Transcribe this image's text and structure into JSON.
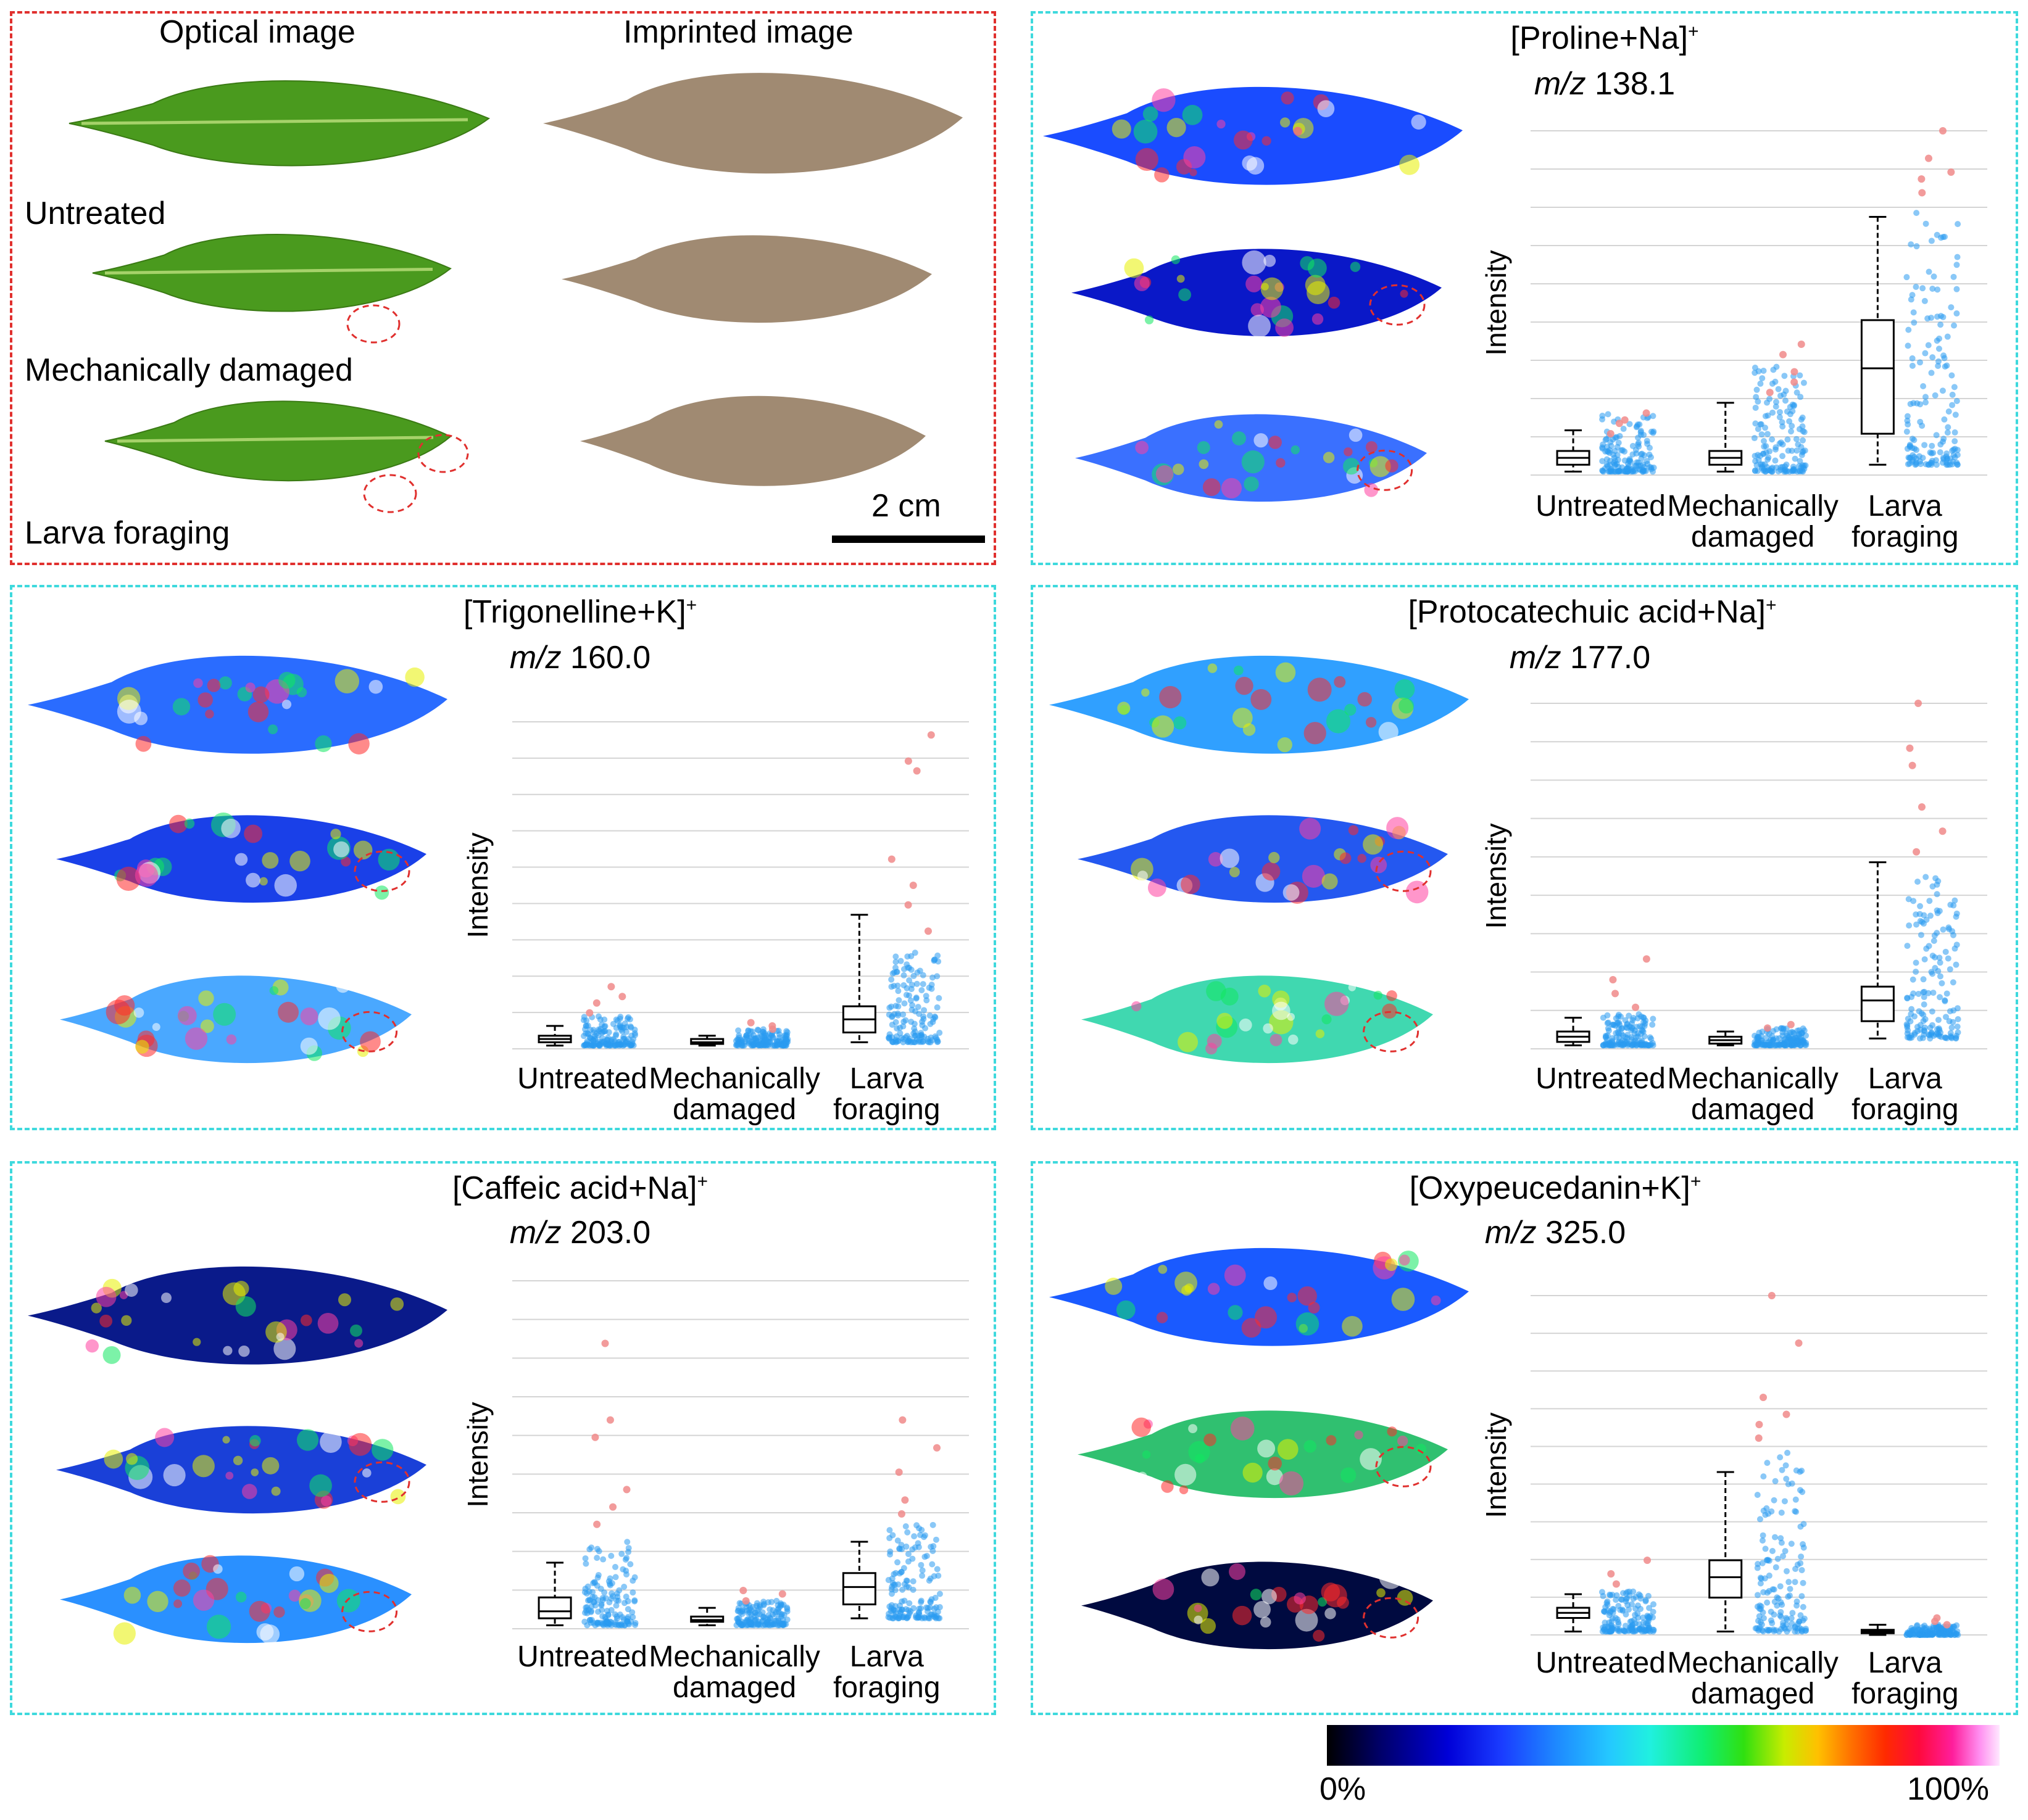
{
  "figure": {
    "optical_label": "Optical image",
    "imprinted_label": "Imprinted image",
    "row_labels": [
      "Untreated",
      "Mechanically damaged",
      "Larva foraging"
    ],
    "scale_bar": "2 cm",
    "y_axis_label": "Intensity",
    "colorbar": {
      "min_label": "0%",
      "max_label": "100%"
    }
  },
  "colors": {
    "red_outline": "#e0302e",
    "cyan_outline": "#3ed9dd",
    "points_main": "#2a9af0",
    "points_outlier": "#f08a8a",
    "leaf_green": "#4a9a1e",
    "imprint_brown": "#a08a72"
  },
  "chart_data": [
    {
      "type": "box",
      "title": "[Proline+Na]",
      "title_sup": "+",
      "mz_prefix": "m/z",
      "mz_value": "138.1",
      "ylabel": "Intensity",
      "ylim": [
        0,
        100
      ],
      "categories": [
        [
          "Untreated"
        ],
        [
          "Mechanically",
          "damaged"
        ],
        [
          "Larva",
          "foraging"
        ]
      ],
      "boxes": [
        {
          "min": 1,
          "q1": 3,
          "median": 5,
          "q3": 7,
          "max": 13,
          "scatter_top": 18,
          "outliers": [
            12,
            15,
            16,
            18
          ]
        },
        {
          "min": 1,
          "q1": 3,
          "median": 5,
          "q3": 7,
          "max": 21,
          "scatter_top": 32,
          "outliers": [
            24,
            27,
            30,
            35,
            38
          ]
        },
        {
          "min": 3,
          "q1": 12,
          "median": 31,
          "q3": 45,
          "max": 75,
          "scatter_top": 80,
          "outliers": [
            82,
            86,
            88,
            92,
            100
          ]
        }
      ]
    },
    {
      "type": "box",
      "title": "[Trigonelline+K]",
      "title_sup": "+",
      "mz_prefix": "m/z",
      "mz_value": "160.0",
      "ylabel": "Intensity",
      "ylim": [
        0,
        100
      ],
      "categories": [
        [
          "Untreated"
        ],
        [
          "Mechanically",
          "damaged"
        ],
        [
          "Larva",
          "foraging"
        ]
      ],
      "boxes": [
        {
          "min": 1,
          "q1": 2,
          "median": 3,
          "q3": 4,
          "max": 7,
          "scatter_top": 10,
          "outliers": [
            11,
            14,
            16,
            19
          ]
        },
        {
          "min": 1,
          "q1": 1.5,
          "median": 2,
          "q3": 3,
          "max": 4,
          "scatter_top": 6,
          "outliers": [
            6,
            7,
            8
          ]
        },
        {
          "min": 2,
          "q1": 5,
          "median": 9,
          "q3": 13,
          "max": 41,
          "scatter_top": 30,
          "outliers": [
            36,
            44,
            50,
            58,
            85,
            88,
            96
          ]
        }
      ]
    },
    {
      "type": "box",
      "title": "[Protocatechuic acid+Na]",
      "title_sup": "+",
      "mz_prefix": "m/z",
      "mz_value": "177.0",
      "ylabel": "Intensity",
      "ylim": [
        0,
        100
      ],
      "categories": [
        [
          "Untreated"
        ],
        [
          "Mechanically",
          "damaged"
        ],
        [
          "Larva",
          "foraging"
        ]
      ],
      "boxes": [
        {
          "min": 1,
          "q1": 2,
          "median": 3.5,
          "q3": 5,
          "max": 9,
          "scatter_top": 10,
          "outliers": [
            12,
            16,
            20,
            26
          ]
        },
        {
          "min": 1,
          "q1": 1.5,
          "median": 2.5,
          "q3": 3.5,
          "max": 5,
          "scatter_top": 6,
          "outliers": [
            6,
            7
          ]
        },
        {
          "min": 3,
          "q1": 8,
          "median": 14,
          "q3": 18,
          "max": 54,
          "scatter_top": 50,
          "outliers": [
            57,
            63,
            70,
            82,
            87,
            100
          ]
        }
      ]
    },
    {
      "type": "box",
      "title": "[Caffeic acid+Na]",
      "title_sup": "+",
      "mz_prefix": "m/z",
      "mz_value": "203.0",
      "ylabel": "Intensity",
      "ylim": [
        0,
        100
      ],
      "categories": [
        [
          "Untreated"
        ],
        [
          "Mechanically",
          "damaged"
        ],
        [
          "Larva",
          "foraging"
        ]
      ],
      "boxes": [
        {
          "min": 1,
          "q1": 3,
          "median": 5,
          "q3": 9,
          "max": 19,
          "scatter_top": 25,
          "outliers": [
            30,
            35,
            40,
            55,
            60,
            82
          ]
        },
        {
          "min": 1,
          "q1": 2,
          "median": 2.5,
          "q3": 3.5,
          "max": 6,
          "scatter_top": 8,
          "outliers": [
            8,
            10,
            11
          ]
        },
        {
          "min": 3,
          "q1": 7,
          "median": 12,
          "q3": 16,
          "max": 25,
          "scatter_top": 30,
          "outliers": [
            33,
            37,
            45,
            52,
            60
          ]
        }
      ]
    },
    {
      "type": "box",
      "title": "[Oxypeucedanin+K]",
      "title_sup": "+",
      "mz_prefix": "m/z",
      "mz_value": "325.0",
      "ylabel": "Intensity",
      "ylim": [
        0,
        100
      ],
      "categories": [
        [
          "Untreated"
        ],
        [
          "Mechanically",
          "damaged"
        ],
        [
          "Larva",
          "foraging"
        ]
      ],
      "boxes": [
        {
          "min": 1,
          "q1": 5,
          "median": 6.5,
          "q3": 8,
          "max": 12,
          "scatter_top": 13,
          "outliers": [
            15,
            18,
            22
          ]
        },
        {
          "min": 1,
          "q1": 11,
          "median": 17,
          "q3": 22,
          "max": 48,
          "scatter_top": 55,
          "outliers": [
            58,
            62,
            65,
            70,
            86,
            100
          ]
        },
        {
          "min": 0,
          "q1": 0.5,
          "median": 1,
          "q3": 1.5,
          "max": 3,
          "scatter_top": 3,
          "outliers": [
            3,
            4,
            5
          ]
        }
      ]
    }
  ]
}
